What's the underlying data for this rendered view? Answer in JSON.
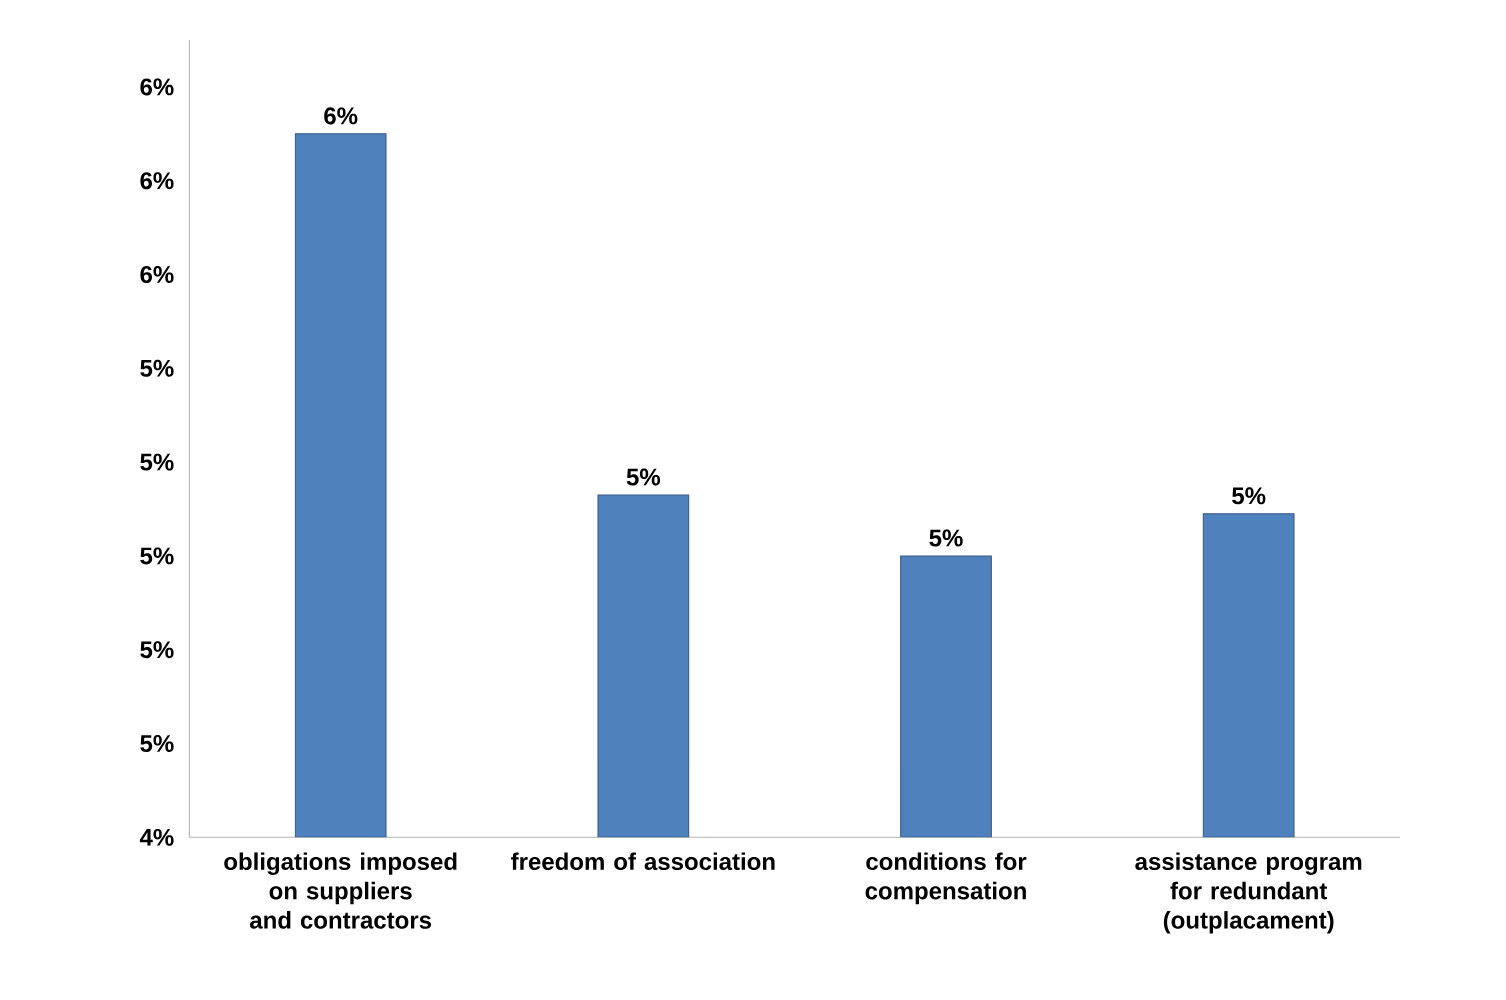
{
  "chart_data": {
    "type": "bar",
    "categories": [
      "obligations imposed on suppliers and contractors",
      "freedom of association",
      "conditions for compensation",
      "assistance program for redundant (outplacament)"
    ],
    "values": [
      5.9,
      5.13,
      5.0,
      5.09
    ],
    "value_labels": [
      "6%",
      "5%",
      "5%",
      "5%"
    ],
    "color": "#4f81bd",
    "ylim": [
      4.4,
      6.1
    ],
    "yticks": [
      {
        "value": 4.4,
        "label": "4%"
      },
      {
        "value": 4.6,
        "label": "5%"
      },
      {
        "value": 4.8,
        "label": "5%"
      },
      {
        "value": 5.0,
        "label": "5%"
      },
      {
        "value": 5.2,
        "label": "5%"
      },
      {
        "value": 5.4,
        "label": "5%"
      },
      {
        "value": 5.6,
        "label": "6%"
      },
      {
        "value": 5.8,
        "label": "6%"
      },
      {
        "value": 6.0,
        "label": "6%"
      }
    ],
    "grid": false
  }
}
